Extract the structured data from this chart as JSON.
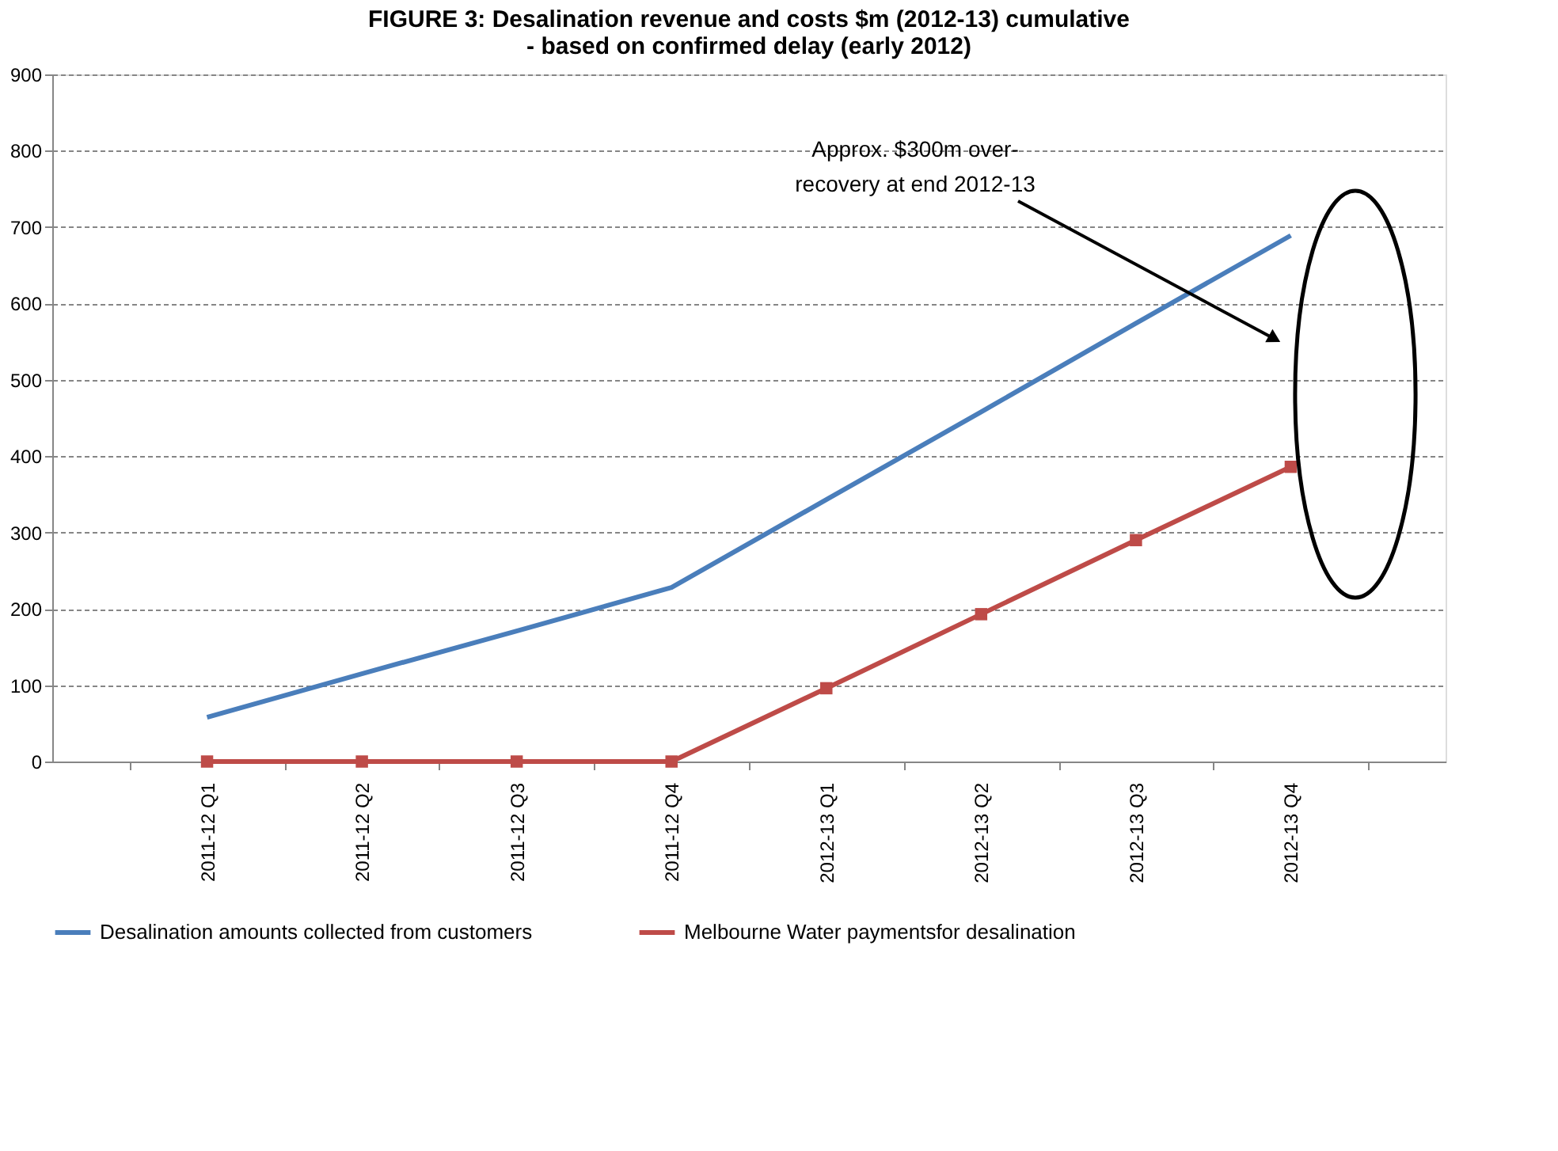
{
  "chart_data": {
    "type": "line",
    "title": "FIGURE 3:  Desalination revenue and costs $m (2012-13) cumulative\n- based on confirmed delay (early 2012)",
    "categories": [
      "2011-12 Q1",
      "2011-12 Q2",
      "2011-12 Q3",
      "2011-12 Q4",
      "2012-13 Q1",
      "2012-13 Q2",
      "2012-13 Q3",
      "2012-13 Q4"
    ],
    "series": [
      {
        "name": "Desalination amounts collected from customers",
        "color": "#4a7ebb",
        "marker": "none",
        "values": [
          58,
          115,
          171,
          228,
          343,
          458,
          574,
          689
        ]
      },
      {
        "name": "Melbourne Water paymentsfor desalination",
        "color": "#be4b48",
        "marker": "square",
        "values": [
          0,
          0,
          0,
          0,
          96,
          193,
          290,
          386
        ]
      }
    ],
    "ylim": [
      0,
      900
    ],
    "yticks": [
      0,
      100,
      200,
      300,
      400,
      500,
      600,
      700,
      800,
      900
    ],
    "grid": "y",
    "legend": "bottom",
    "annotations": [
      "Approx. $300m over-\nrecovery at end 2012-13"
    ]
  }
}
